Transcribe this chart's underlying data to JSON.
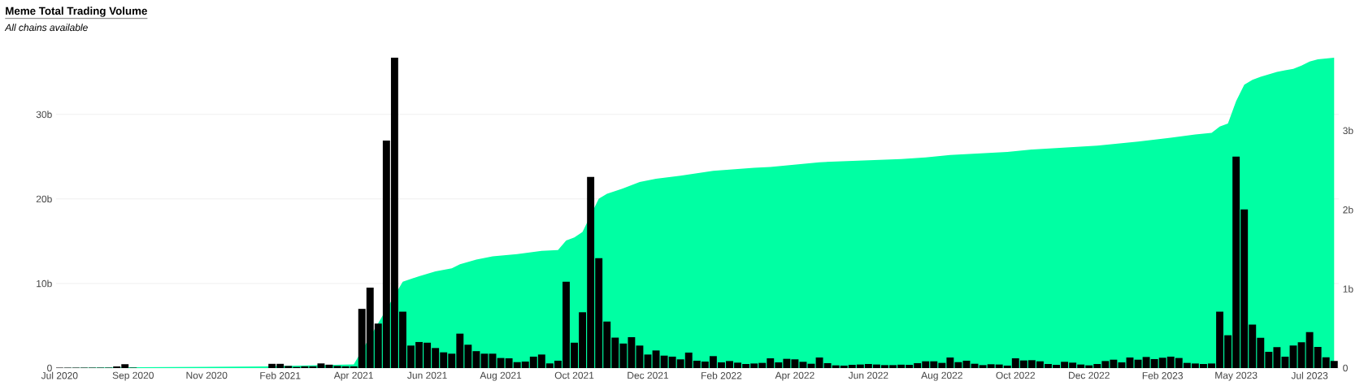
{
  "chart_data": {
    "type": "bar",
    "title": "Meme Total Trading Volume",
    "subtitle": "All chains available",
    "x": [
      "2020-07-27",
      "2020-08-03",
      "2020-08-10",
      "2020-08-17",
      "2020-08-24",
      "2020-08-31",
      "2020-09-07",
      "2020-09-14",
      "2020-09-21",
      "2020-09-28",
      "2020-10-05",
      "2020-10-12",
      "2020-10-19",
      "2020-10-26",
      "2020-11-02",
      "2020-11-09",
      "2020-11-16",
      "2020-11-23",
      "2020-11-30",
      "2020-12-07",
      "2020-12-14",
      "2020-12-21",
      "2020-12-28",
      "2021-01-04",
      "2021-01-11",
      "2021-01-18",
      "2021-01-25",
      "2021-02-01",
      "2021-02-08",
      "2021-02-15",
      "2021-02-22",
      "2021-03-01",
      "2021-03-08",
      "2021-03-15",
      "2021-03-22",
      "2021-03-29",
      "2021-04-05",
      "2021-04-12",
      "2021-04-19",
      "2021-04-26",
      "2021-05-03",
      "2021-05-10",
      "2021-05-17",
      "2021-05-24",
      "2021-05-31",
      "2021-06-07",
      "2021-06-14",
      "2021-06-21",
      "2021-06-28",
      "2021-07-05",
      "2021-07-12",
      "2021-07-19",
      "2021-07-26",
      "2021-08-02",
      "2021-08-09",
      "2021-08-16",
      "2021-08-23",
      "2021-08-30",
      "2021-09-06",
      "2021-09-13",
      "2021-09-20",
      "2021-09-27",
      "2021-10-04",
      "2021-10-11",
      "2021-10-18",
      "2021-10-25",
      "2021-11-01",
      "2021-11-08",
      "2021-11-15",
      "2021-11-22",
      "2021-11-29",
      "2021-12-06",
      "2021-12-13",
      "2021-12-20",
      "2021-12-27",
      "2022-01-03",
      "2022-01-10",
      "2022-01-17",
      "2022-01-24",
      "2022-01-31",
      "2022-02-07",
      "2022-02-14",
      "2022-02-21",
      "2022-02-28",
      "2022-03-07",
      "2022-03-14",
      "2022-03-21",
      "2022-03-28",
      "2022-04-04",
      "2022-04-11",
      "2022-04-18",
      "2022-04-25",
      "2022-05-02",
      "2022-05-09",
      "2022-05-16",
      "2022-05-23",
      "2022-05-30",
      "2022-06-06",
      "2022-06-13",
      "2022-06-20",
      "2022-06-27",
      "2022-07-04",
      "2022-07-11",
      "2022-07-18",
      "2022-07-25",
      "2022-08-01",
      "2022-08-08",
      "2022-08-15",
      "2022-08-22",
      "2022-08-29",
      "2022-09-05",
      "2022-09-12",
      "2022-09-19",
      "2022-09-26",
      "2022-10-03",
      "2022-10-10",
      "2022-10-17",
      "2022-10-24",
      "2022-10-31",
      "2022-11-07",
      "2022-11-14",
      "2022-11-21",
      "2022-11-28",
      "2022-12-05",
      "2022-12-12",
      "2022-12-19",
      "2022-12-26",
      "2023-01-02",
      "2023-01-09",
      "2023-01-16",
      "2023-01-23",
      "2023-01-30",
      "2023-02-06",
      "2023-02-13",
      "2023-02-20",
      "2023-02-27",
      "2023-03-06",
      "2023-03-13",
      "2023-03-20",
      "2023-03-27",
      "2023-04-03",
      "2023-04-10",
      "2023-04-17",
      "2023-04-24",
      "2023-05-01",
      "2023-05-08",
      "2023-05-15",
      "2023-05-22",
      "2023-05-29",
      "2023-06-05",
      "2023-06-12",
      "2023-06-19",
      "2023-06-26",
      "2023-07-03",
      "2023-07-10",
      "2023-07-17",
      "2023-07-24"
    ],
    "series": [
      {
        "type": "area",
        "axis": "y2",
        "color": "#00ffa3",
        "x": [
          "2020-07-27",
          "2020-09-28",
          "2021-01-18",
          "2021-04-05",
          "2021-04-12",
          "2021-04-19",
          "2021-04-26",
          "2021-05-03",
          "2021-05-10",
          "2021-05-17",
          "2021-05-31",
          "2021-06-14",
          "2021-06-28",
          "2021-07-05",
          "2021-07-19",
          "2021-08-02",
          "2021-08-23",
          "2021-09-13",
          "2021-09-27",
          "2021-10-04",
          "2021-10-11",
          "2021-10-18",
          "2021-10-25",
          "2021-11-01",
          "2021-11-08",
          "2021-11-22",
          "2021-12-06",
          "2021-12-20",
          "2022-01-10",
          "2022-02-07",
          "2022-03-14",
          "2022-03-28",
          "2022-05-09",
          "2022-06-13",
          "2022-07-18",
          "2022-08-08",
          "2022-08-29",
          "2022-10-17",
          "2022-11-07",
          "2023-01-02",
          "2023-01-23",
          "2023-02-06",
          "2023-03-06",
          "2023-03-27",
          "2023-04-10",
          "2023-04-17",
          "2023-04-24",
          "2023-05-01",
          "2023-05-08",
          "2023-05-15",
          "2023-05-22",
          "2023-05-29",
          "2023-06-05",
          "2023-06-12",
          "2023-06-19",
          "2023-06-26",
          "2023-07-03",
          "2023-07-10",
          "2023-07-17",
          "2023-07-24"
        ],
        "values": [
          0,
          0.01,
          0.02,
          0.045,
          null,
          null,
          null,
          null,
          null,
          1.09,
          1.16,
          1.22,
          1.26,
          1.31,
          1.37,
          1.41,
          1.44,
          1.48,
          1.49,
          1.61,
          1.65,
          1.72,
          null,
          2.14,
          2.2,
          2.27,
          2.35,
          2.39,
          2.43,
          2.49,
          2.53,
          2.54,
          2.6,
          2.62,
          2.64,
          2.66,
          2.69,
          2.73,
          2.76,
          2.81,
          2.84,
          2.86,
          2.91,
          2.95,
          2.97,
          3.05,
          3.09,
          3.37,
          3.58,
          3.64,
          3.68,
          3.71,
          3.74,
          3.76,
          3.78,
          3.82,
          3.87,
          3.9,
          3.91,
          3.92
        ]
      },
      {
        "color": "#000000",
        "values": [
          0.05,
          0.05,
          0.05,
          0.05,
          0.05,
          0.05,
          0.05,
          0.2,
          0.45,
          0.05,
          null,
          null,
          null,
          null,
          null,
          null,
          null,
          null,
          null,
          null,
          null,
          null,
          null,
          null,
          null,
          null,
          0.5,
          0.5,
          0.25,
          0.13,
          0.2,
          0.2,
          0.55,
          0.4,
          0.25,
          0.2,
          0.2,
          7.0,
          9.5,
          5.26,
          26.9,
          36.7,
          6.67,
          2.66,
          3.08,
          3.0,
          2.37,
          1.86,
          1.7,
          4.07,
          2.76,
          2.0,
          1.7,
          1.7,
          1.19,
          1.15,
          0.7,
          0.77,
          1.35,
          1.6,
          0.55,
          0.87,
          10.2,
          3.0,
          6.6,
          22.6,
          13.0,
          5.5,
          3.6,
          2.9,
          3.65,
          2.66,
          1.6,
          2.08,
          1.47,
          1.35,
          1.03,
          1.83,
          0.87,
          0.77,
          1.41,
          0.67,
          0.83,
          0.64,
          0.48,
          0.54,
          0.61,
          1.15,
          0.67,
          1.09,
          1.03,
          0.74,
          0.51,
          1.25,
          0.58,
          0.32,
          0.29,
          0.38,
          0.42,
          0.48,
          0.42,
          0.35,
          0.35,
          0.4,
          0.38,
          0.58,
          0.8,
          0.8,
          0.61,
          1.25,
          0.7,
          0.87,
          0.51,
          0.35,
          0.45,
          0.42,
          0.29,
          1.15,
          0.9,
          0.93,
          0.8,
          0.48,
          0.38,
          0.74,
          0.64,
          0.42,
          0.32,
          0.48,
          0.83,
          0.99,
          0.67,
          1.25,
          0.99,
          1.31,
          1.06,
          1.22,
          1.35,
          1.19,
          0.61,
          0.54,
          0.48,
          0.54,
          6.67,
          3.88,
          25.0,
          18.75,
          5.13,
          3.59,
          1.92,
          2.47,
          1.35,
          2.66,
          3.04,
          4.26,
          2.5,
          1.28,
          0.83
        ]
      }
    ],
    "xlim": [
      "2020-07-24",
      "2023-07-28"
    ],
    "xticks": [
      {
        "value": "2020-07-27",
        "label": "Jul 2020"
      },
      {
        "value": "2020-09-28",
        "label": "Sep 2020"
      },
      {
        "value": "2020-11-30",
        "label": "Nov 2020"
      },
      {
        "value": "2021-02-01",
        "label": "Feb 2021"
      },
      {
        "value": "2021-04-05",
        "label": "Apr 2021"
      },
      {
        "value": "2021-06-07",
        "label": "Jun 2021"
      },
      {
        "value": "2021-08-09",
        "label": "Aug 2021"
      },
      {
        "value": "2021-10-11",
        "label": "Oct 2021"
      },
      {
        "value": "2021-12-13",
        "label": "Dec 2021"
      },
      {
        "value": "2022-02-14",
        "label": "Feb 2022"
      },
      {
        "value": "2022-04-18",
        "label": "Apr 2022"
      },
      {
        "value": "2022-06-20",
        "label": "Jun 2022"
      },
      {
        "value": "2022-08-22",
        "label": "Aug 2022"
      },
      {
        "value": "2022-10-24",
        "label": "Oct 2022"
      },
      {
        "value": "2022-12-26",
        "label": "Dec 2022"
      },
      {
        "value": "2023-02-27",
        "label": "Feb 2023"
      },
      {
        "value": "2023-05-01",
        "label": "May 2023"
      },
      {
        "value": "2023-07-03",
        "label": "Jul 2023"
      }
    ],
    "ylim": [
      0,
      36.7
    ],
    "yticks": [
      0,
      {
        "value": 10,
        "label": "10b"
      },
      {
        "value": 20,
        "label": "20b"
      },
      {
        "value": 30,
        "label": "30b"
      }
    ],
    "y2lim": [
      0,
      3.92
    ],
    "y2ticks": [
      0,
      {
        "value": 1,
        "label": "1b"
      },
      {
        "value": 2,
        "label": "2b"
      },
      {
        "value": 3,
        "label": "3b"
      }
    ],
    "grid": "y"
  }
}
